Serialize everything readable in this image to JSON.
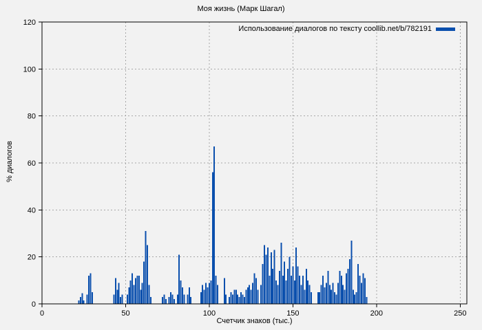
{
  "chart_data": {
    "type": "bar",
    "style": "impulses",
    "title": "Моя жизнь (Марк Шагал)",
    "xlabel": "Счетчик знаков (тыс.)",
    "ylabel": "% диалогов",
    "legend": {
      "label": "Использование диалогов по тексту coollib.net/b/782191",
      "position": "top-right"
    },
    "colors": {
      "background": "#f2f2f2",
      "series": "#0a4fad",
      "grid": "#a6a6a6",
      "frame": "#000000",
      "text": "#000000"
    },
    "xlim": [
      0,
      254
    ],
    "ylim": [
      0,
      120
    ],
    "xticks": [
      0,
      50,
      100,
      150,
      200,
      250
    ],
    "yticks": [
      0,
      20,
      40,
      60,
      80,
      100,
      120
    ],
    "grid": true,
    "points": [
      [
        22,
        1.5
      ],
      [
        23,
        3
      ],
      [
        24,
        4.5
      ],
      [
        25,
        1.5
      ],
      [
        27,
        4
      ],
      [
        28,
        12
      ],
      [
        29,
        13
      ],
      [
        30,
        5
      ],
      [
        43,
        4
      ],
      [
        44,
        11
      ],
      [
        45,
        6
      ],
      [
        46,
        9
      ],
      [
        47,
        3
      ],
      [
        48,
        4
      ],
      [
        51,
        4
      ],
      [
        52,
        7
      ],
      [
        53,
        10
      ],
      [
        54,
        13
      ],
      [
        55,
        8
      ],
      [
        56,
        11
      ],
      [
        57,
        12
      ],
      [
        58,
        12
      ],
      [
        59,
        6
      ],
      [
        60,
        9
      ],
      [
        61,
        18
      ],
      [
        62,
        31
      ],
      [
        63,
        25
      ],
      [
        64,
        8
      ],
      [
        65,
        3
      ],
      [
        72,
        3
      ],
      [
        73,
        4
      ],
      [
        74,
        2
      ],
      [
        76,
        3
      ],
      [
        77,
        5
      ],
      [
        78,
        4
      ],
      [
        79,
        2
      ],
      [
        81,
        4
      ],
      [
        82,
        21
      ],
      [
        83,
        10
      ],
      [
        84,
        7
      ],
      [
        85,
        4
      ],
      [
        87,
        4
      ],
      [
        88,
        7
      ],
      [
        89,
        3
      ],
      [
        95,
        5
      ],
      [
        96,
        8
      ],
      [
        97,
        6
      ],
      [
        98,
        9
      ],
      [
        99,
        7
      ],
      [
        100,
        9
      ],
      [
        101,
        10
      ],
      [
        102,
        56
      ],
      [
        103,
        67
      ],
      [
        104,
        12
      ],
      [
        105,
        8
      ],
      [
        109,
        11
      ],
      [
        110,
        4
      ],
      [
        112,
        3
      ],
      [
        113,
        5
      ],
      [
        114,
        4
      ],
      [
        115,
        6
      ],
      [
        116,
        6
      ],
      [
        117,
        4
      ],
      [
        118,
        3
      ],
      [
        119,
        5
      ],
      [
        120,
        4
      ],
      [
        121,
        3
      ],
      [
        122,
        6
      ],
      [
        123,
        7
      ],
      [
        124,
        8
      ],
      [
        125,
        6
      ],
      [
        126,
        9
      ],
      [
        127,
        13
      ],
      [
        128,
        11
      ],
      [
        129,
        6
      ],
      [
        131,
        8
      ],
      [
        132,
        17
      ],
      [
        133,
        25
      ],
      [
        134,
        21
      ],
      [
        135,
        24
      ],
      [
        136,
        12
      ],
      [
        137,
        22
      ],
      [
        138,
        15
      ],
      [
        139,
        23
      ],
      [
        140,
        10
      ],
      [
        141,
        8
      ],
      [
        142,
        14
      ],
      [
        143,
        26
      ],
      [
        144,
        12
      ],
      [
        145,
        18
      ],
      [
        146,
        10
      ],
      [
        147,
        15
      ],
      [
        148,
        20
      ],
      [
        149,
        12
      ],
      [
        150,
        16
      ],
      [
        151,
        10
      ],
      [
        152,
        24
      ],
      [
        153,
        16
      ],
      [
        154,
        12
      ],
      [
        155,
        8
      ],
      [
        156,
        12
      ],
      [
        157,
        6
      ],
      [
        158,
        15
      ],
      [
        159,
        10
      ],
      [
        160,
        8
      ],
      [
        161,
        5
      ],
      [
        165,
        5
      ],
      [
        166,
        5
      ],
      [
        167,
        8
      ],
      [
        168,
        12
      ],
      [
        169,
        7
      ],
      [
        170,
        9
      ],
      [
        171,
        14
      ],
      [
        172,
        8
      ],
      [
        173,
        6
      ],
      [
        174,
        9
      ],
      [
        175,
        5
      ],
      [
        176,
        4
      ],
      [
        177,
        9
      ],
      [
        178,
        14
      ],
      [
        179,
        12
      ],
      [
        180,
        8
      ],
      [
        181,
        6
      ],
      [
        182,
        13
      ],
      [
        183,
        15
      ],
      [
        184,
        19
      ],
      [
        185,
        27
      ],
      [
        186,
        6
      ],
      [
        187,
        4
      ],
      [
        188,
        5
      ],
      [
        189,
        17
      ],
      [
        190,
        12
      ],
      [
        191,
        9
      ],
      [
        192,
        13
      ],
      [
        193,
        11
      ],
      [
        194,
        3
      ]
    ]
  }
}
